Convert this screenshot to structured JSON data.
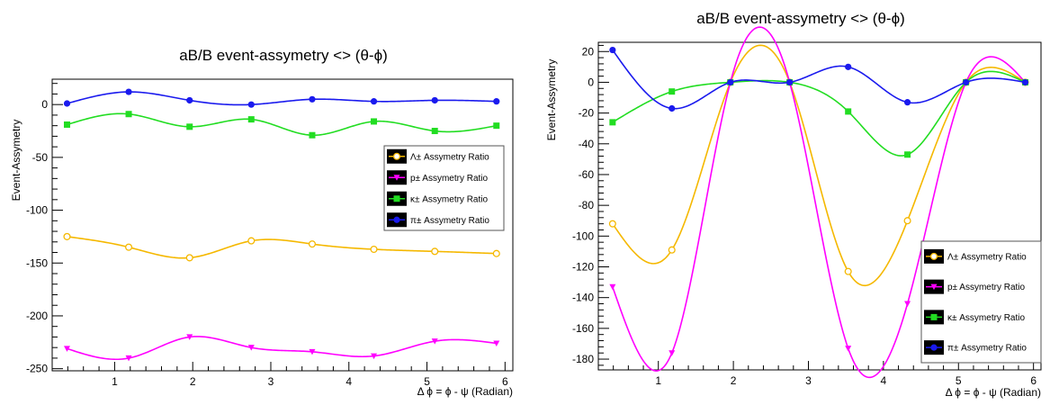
{
  "chart_data": [
    {
      "type": "line",
      "title": "aB/B event-assymetry <> (θ-ϕ)",
      "xlabel": "Δ ϕ = ϕ - ψ (Radian)",
      "ylabel": "Event-Assymetry",
      "xlim": [
        0.2,
        6.1
      ],
      "ylim": [
        -252,
        24
      ],
      "x_ticks": [
        1,
        2,
        3,
        4,
        5,
        6
      ],
      "y_ticks": [
        0,
        -50,
        -100,
        -150,
        -200,
        -250
      ],
      "grid": false,
      "legend_position": "right",
      "x": [
        0.39,
        1.18,
        1.96,
        2.75,
        3.53,
        4.32,
        5.1,
        5.89
      ],
      "series": [
        {
          "name": "Λ± Assymetry Ratio",
          "color": "#f5b800",
          "marker": "open-circle",
          "values": [
            -125,
            -135,
            -145,
            -129,
            -132,
            -137,
            -139,
            -141
          ]
        },
        {
          "name": "p± Assymetry Ratio",
          "color": "#ff00ff",
          "marker": "triangle-down",
          "values": [
            -231,
            -240,
            -220,
            -230,
            -234,
            -238,
            -224,
            -226
          ]
        },
        {
          "name": "κ± Assymetry Ratio",
          "color": "#22dd22",
          "marker": "square",
          "values": [
            -19,
            -9,
            -21,
            -14,
            -29,
            -16,
            -25,
            -20
          ]
        },
        {
          "name": "π± Assymetry Ratio",
          "color": "#1a1aee",
          "marker": "circle",
          "values": [
            1,
            12,
            4,
            0,
            5,
            3,
            4,
            3
          ]
        }
      ]
    },
    {
      "type": "line",
      "title": "aB/B event-assymetry <> (θ-ϕ)",
      "xlabel": "Δ ϕ = ϕ - ψ (Radian)",
      "ylabel": "Event-Assymetry",
      "xlim": [
        0.2,
        6.1
      ],
      "ylim": [
        -187,
        26
      ],
      "x_ticks": [
        1,
        2,
        3,
        4,
        5,
        6
      ],
      "y_ticks": [
        20,
        0,
        -20,
        -40,
        -60,
        -80,
        -100,
        -120,
        -140,
        -160,
        -180
      ],
      "grid": false,
      "legend_position": "bottom-right",
      "x": [
        0.39,
        1.18,
        1.96,
        2.75,
        3.53,
        4.32,
        5.1,
        5.89
      ],
      "series": [
        {
          "name": "Λ± Assymetry Ratio",
          "color": "#f5b800",
          "marker": "open-circle",
          "values": [
            -92,
            -109,
            0,
            0,
            -123,
            -90,
            0,
            0
          ]
        },
        {
          "name": "p± Assymetry Ratio",
          "color": "#ff00ff",
          "marker": "triangle-down",
          "values": [
            -133,
            -176,
            0,
            0,
            -173,
            -144,
            0,
            0
          ]
        },
        {
          "name": "κ± Assymetry Ratio",
          "color": "#22dd22",
          "marker": "square",
          "values": [
            -26,
            -6,
            0,
            0,
            -19,
            -47,
            0,
            0
          ]
        },
        {
          "name": "π± Assymetry Ratio",
          "color": "#1a1aee",
          "marker": "circle",
          "values": [
            21,
            -17,
            0,
            0,
            10,
            -13,
            0,
            0
          ]
        }
      ]
    }
  ]
}
